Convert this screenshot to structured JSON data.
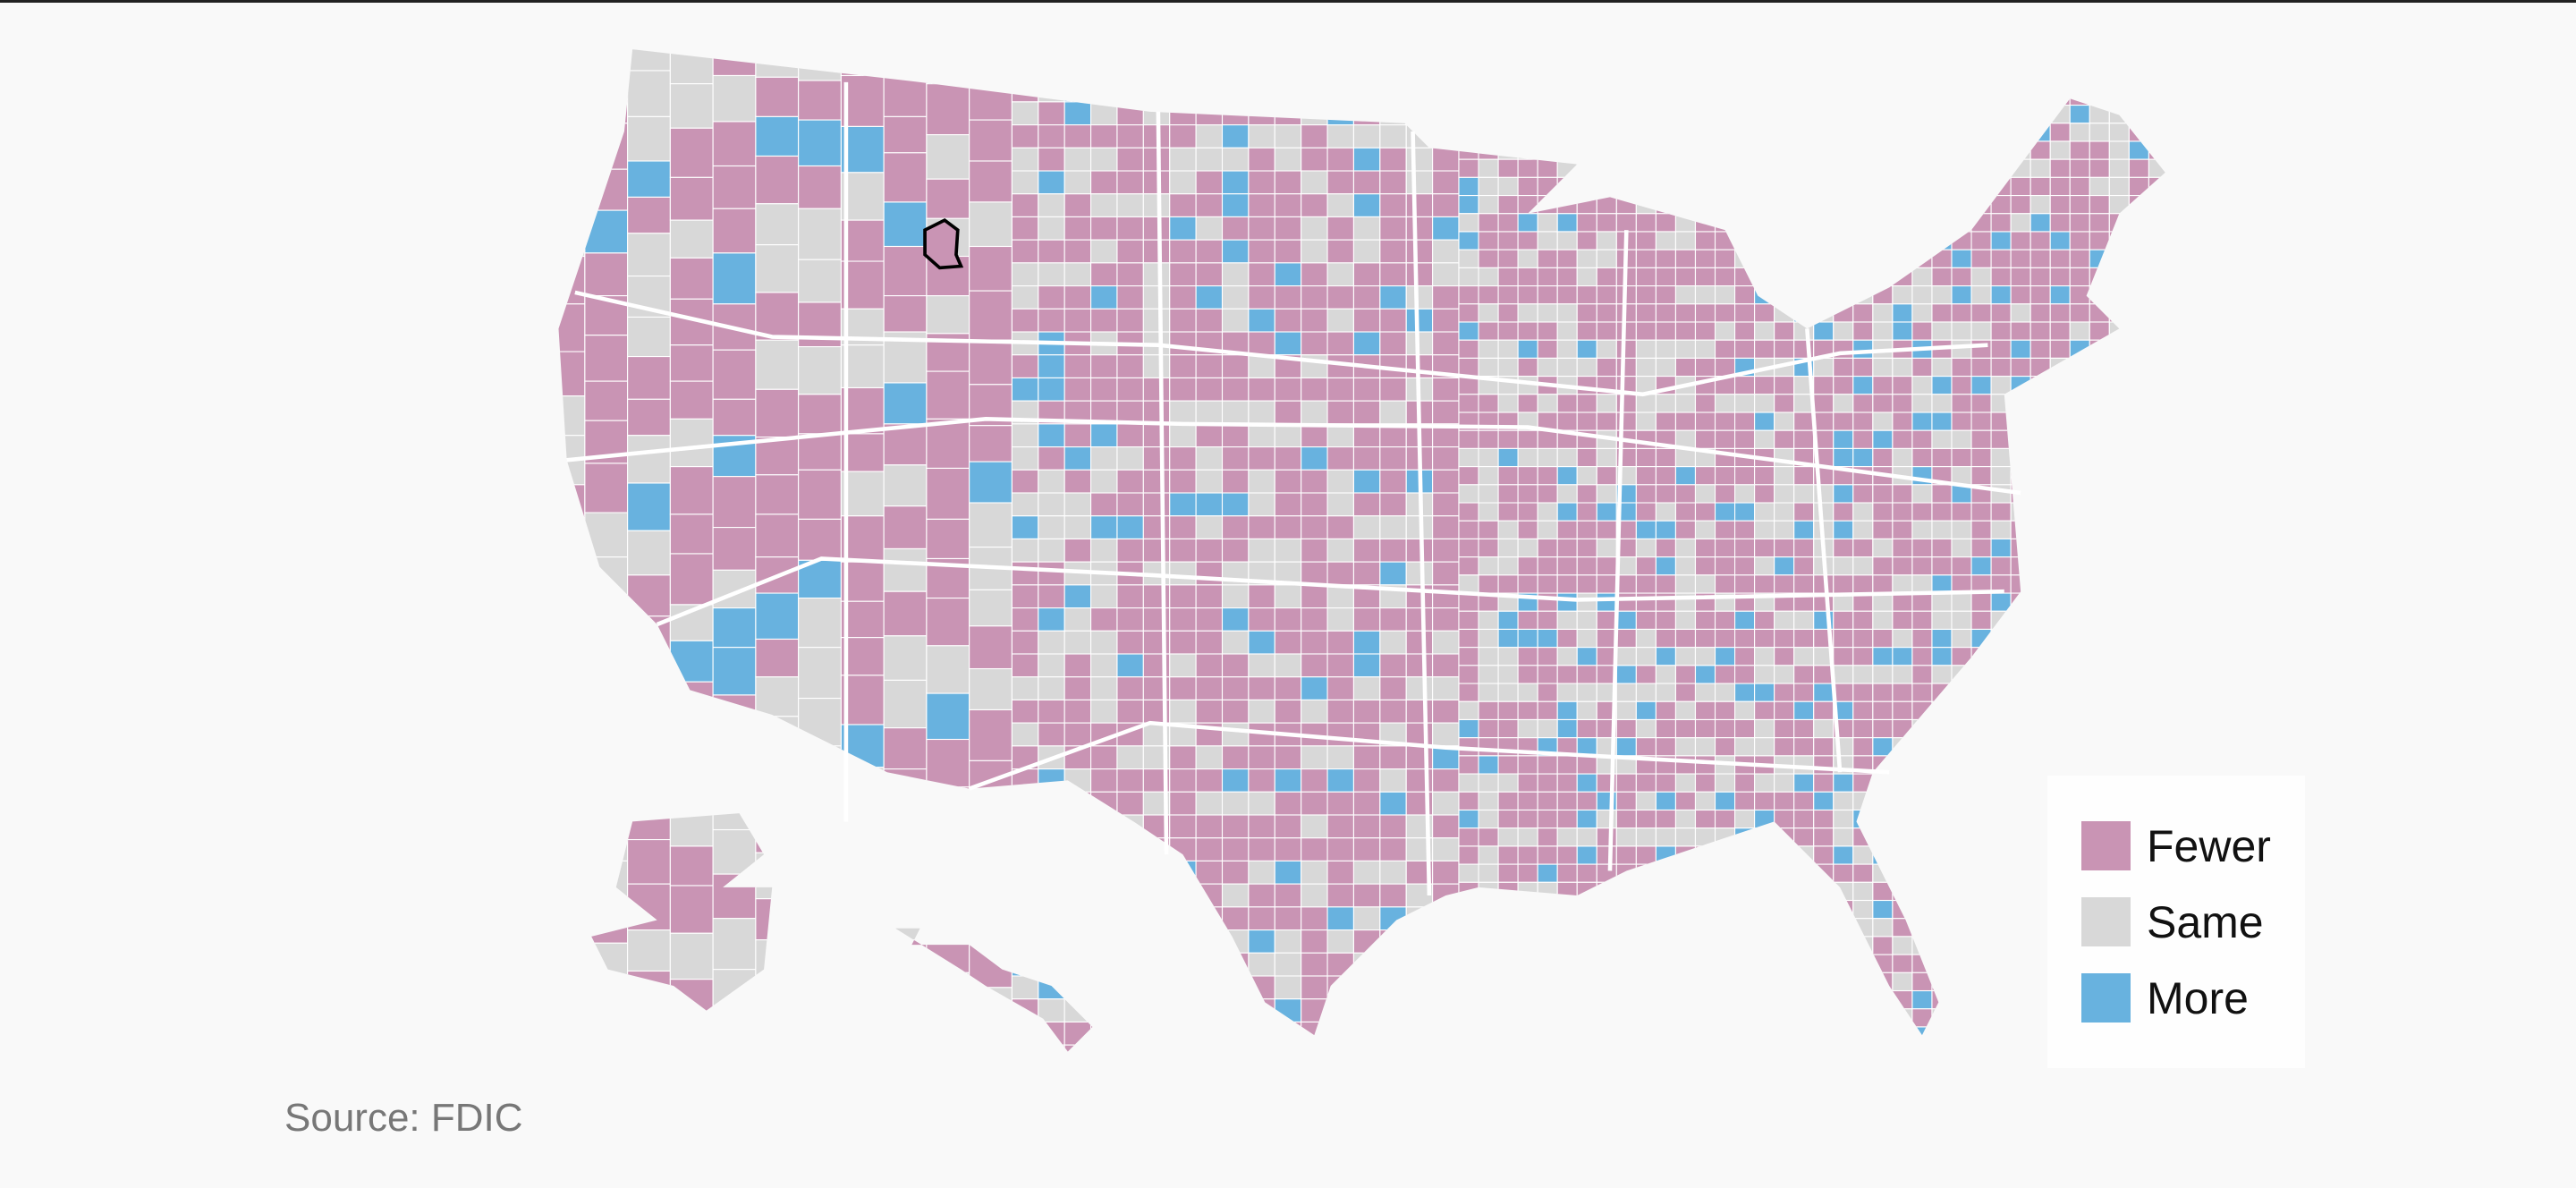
{
  "legend": {
    "items": [
      {
        "label": "Fewer",
        "color": "#c994b4"
      },
      {
        "label": "Same",
        "color": "#d8d8d8"
      },
      {
        "label": "More",
        "color": "#68b2df"
      }
    ]
  },
  "source": "Source: FDIC"
}
